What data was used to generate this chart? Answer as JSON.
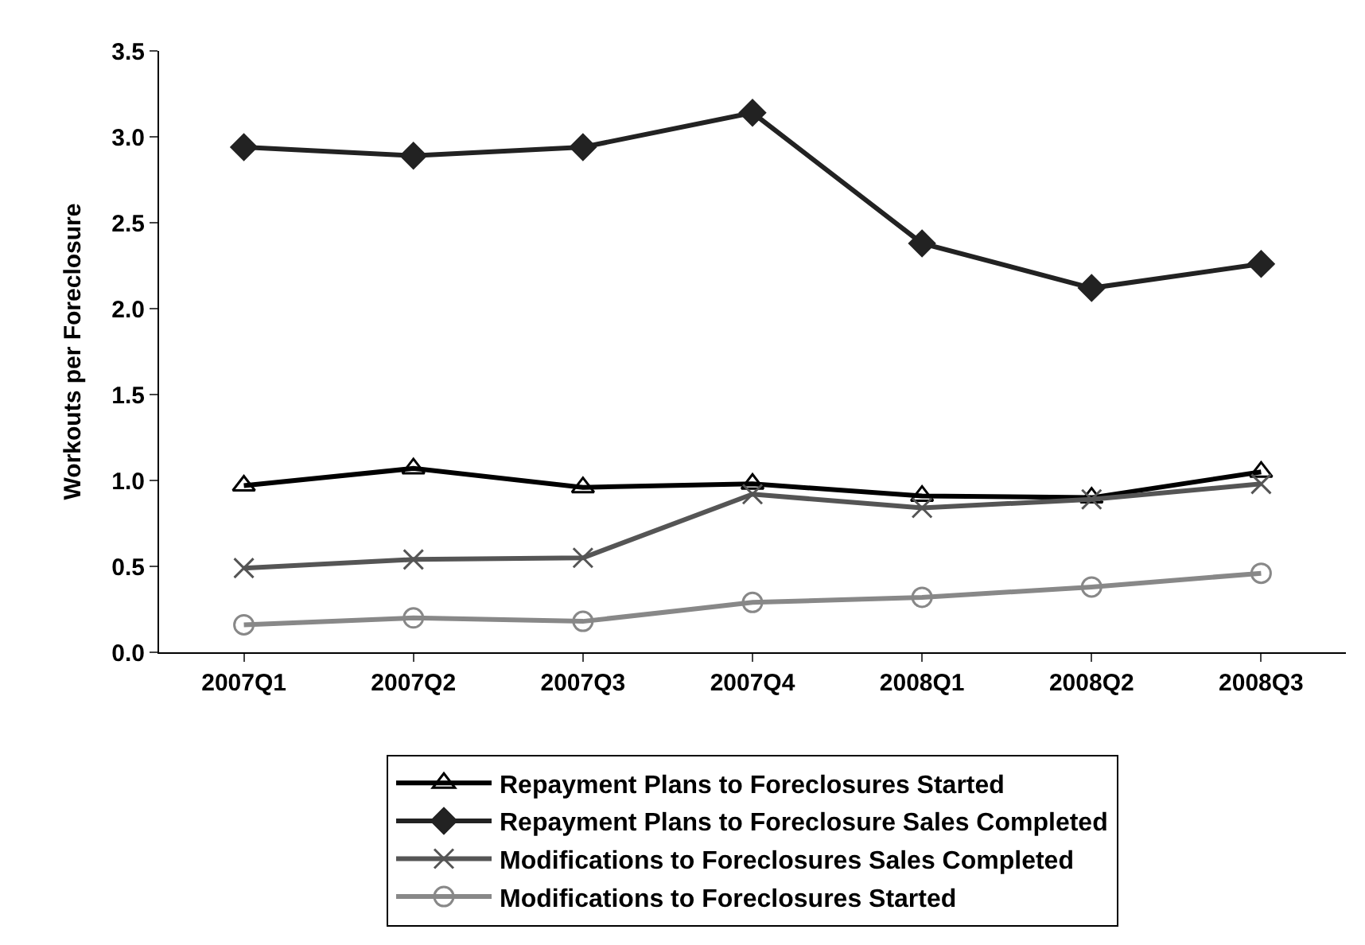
{
  "chart_data": {
    "type": "line",
    "ylabel": "Workouts per Foreclosure",
    "categories": [
      "2007Q1",
      "2007Q2",
      "2007Q3",
      "2007Q4",
      "2008Q1",
      "2008Q2",
      "2008Q3"
    ],
    "series": [
      {
        "name": "Repayment Plans to Foreclosures Started",
        "color": "#000000",
        "marker": "triangle",
        "values": [
          0.97,
          1.07,
          0.96,
          0.98,
          0.91,
          0.9,
          1.05
        ]
      },
      {
        "name": "Repayment Plans to Foreclosure Sales Completed",
        "color": "#222222",
        "marker": "diamond",
        "values": [
          2.94,
          2.89,
          2.94,
          3.14,
          2.38,
          2.12,
          2.26
        ]
      },
      {
        "name": "Modifications to Foreclosures Sales Completed",
        "color": "#555555",
        "marker": "cross",
        "values": [
          0.49,
          0.54,
          0.55,
          0.92,
          0.84,
          0.89,
          0.98
        ]
      },
      {
        "name": "Modifications to Foreclosures Started",
        "color": "#888888",
        "marker": "circle",
        "values": [
          0.16,
          0.2,
          0.18,
          0.29,
          0.32,
          0.38,
          0.46
        ]
      }
    ],
    "ylim": [
      0,
      3.5
    ],
    "yticks": [
      {
        "value": 0,
        "label": "0.0"
      },
      {
        "value": 0.5,
        "label": "0.5"
      },
      {
        "value": 1,
        "label": "1.0"
      },
      {
        "value": 1.5,
        "label": "1.5"
      },
      {
        "value": 2,
        "label": "2.0"
      },
      {
        "value": 2.5,
        "label": "2.5"
      },
      {
        "value": 3,
        "label": "3.0"
      },
      {
        "value": 3.5,
        "label": "3.5"
      }
    ],
    "grid": false,
    "legend": "bottom",
    "line_style": "solid"
  }
}
